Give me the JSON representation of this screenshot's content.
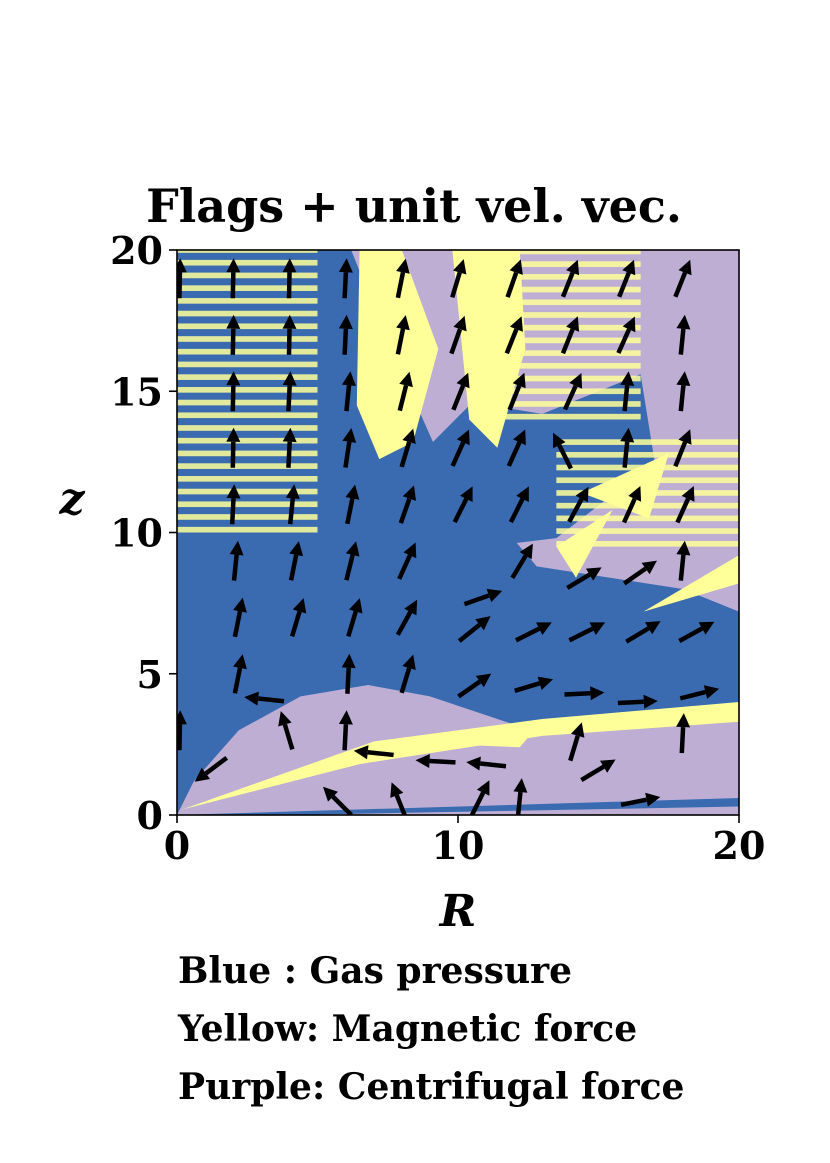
{
  "chart_data": {
    "type": "heatmap",
    "title": "Flags + unit vel. vec.",
    "xlabel": "R",
    "ylabel": "z",
    "xlim": [
      0,
      20
    ],
    "ylim": [
      0,
      20
    ],
    "x_ticks": [
      "0",
      "10",
      "20"
    ],
    "y_ticks": [
      "0",
      "5",
      "10",
      "15",
      "20"
    ],
    "categories": [
      {
        "name": "Gas pressure",
        "color": "#3a6bb0"
      },
      {
        "name": "Magnetic force",
        "color": "#ffff99"
      },
      {
        "name": "Centrifugal force",
        "color": "#beaed4"
      }
    ],
    "flag_regions": [
      {
        "flag": "Centrifugal force",
        "polygon": [
          [
            0,
            0
          ],
          [
            20,
            0
          ],
          [
            20,
            20
          ],
          [
            0,
            20
          ]
        ]
      },
      {
        "flag": "Gas pressure",
        "polygon": [
          [
            0,
            0
          ],
          [
            0,
            20
          ],
          [
            6.2,
            20
          ],
          [
            7.2,
            17.5
          ],
          [
            9.2,
            13
          ],
          [
            12.8,
            8.8
          ],
          [
            18,
            8
          ],
          [
            20,
            7.2
          ],
          [
            20,
            3.6
          ],
          [
            16,
            3.2
          ],
          [
            12,
            3.2
          ],
          [
            9,
            4.2
          ],
          [
            6.8,
            4.6
          ],
          [
            4.4,
            4.2
          ],
          [
            2.2,
            3
          ],
          [
            0.6,
            1.2
          ]
        ]
      },
      {
        "flag": "Gas pressure",
        "polygon": [
          [
            8.5,
            12.6
          ],
          [
            10.5,
            14.6
          ],
          [
            13,
            14.2
          ],
          [
            16.5,
            15.6
          ],
          [
            17,
            12.5
          ],
          [
            13.5,
            9.8
          ],
          [
            11,
            9.5
          ]
        ]
      },
      {
        "flag": "Gas pressure",
        "polygon": [
          [
            0,
            0
          ],
          [
            20,
            0.6
          ],
          [
            20,
            0.3
          ],
          [
            4,
            0
          ]
        ]
      },
      {
        "flag": "Magnetic force",
        "polygon": [
          [
            6.5,
            20
          ],
          [
            8,
            20
          ],
          [
            9.3,
            16.5
          ],
          [
            8.4,
            13.2
          ],
          [
            7.2,
            12.6
          ],
          [
            6.4,
            14.5
          ]
        ]
      },
      {
        "flag": "Magnetic force",
        "polygon": [
          [
            9.8,
            20
          ],
          [
            12.2,
            20
          ],
          [
            12.4,
            16.5
          ],
          [
            11.4,
            13
          ],
          [
            10.4,
            14
          ]
        ]
      },
      {
        "flag": "Magnetic force",
        "polygon": [
          [
            14.4,
            11.4
          ],
          [
            17.5,
            12.8
          ],
          [
            16.8,
            10.5
          ]
        ]
      },
      {
        "flag": "Magnetic force",
        "polygon": [
          [
            0.2,
            0.2
          ],
          [
            7,
            2.6
          ],
          [
            13,
            3.4
          ],
          [
            20,
            4
          ],
          [
            20,
            3.3
          ],
          [
            13,
            2.8
          ],
          [
            6.5,
            1.8
          ]
        ]
      },
      {
        "flag": "Magnetic force",
        "polygon": [
          [
            16.6,
            7.2
          ],
          [
            20,
            9.2
          ],
          [
            20,
            8.2
          ]
        ]
      },
      {
        "flag": "Magnetic force",
        "polygon": [
          [
            9.6,
            2.5
          ],
          [
            12.8,
            3.1
          ],
          [
            12.2,
            2.4
          ]
        ]
      },
      {
        "flag": "Magnetic force",
        "polygon": [
          [
            13.5,
            9.5
          ],
          [
            15.5,
            10.8
          ],
          [
            14.2,
            8.4
          ]
        ]
      }
    ],
    "striped_regions": [
      {
        "flag": "Magnetic force",
        "r_min": 0,
        "r_max": 5,
        "z_min": 10,
        "z_max": 20
      },
      {
        "flag": "Magnetic force",
        "r_min": 10.5,
        "r_max": 16.5,
        "z_min": 14,
        "z_max": 20
      },
      {
        "flag": "Magnetic force",
        "r_min": 13.5,
        "r_max": 20,
        "z_min": 9.5,
        "z_max": 13.5
      }
    ],
    "velocity_vectors": [
      {
        "r": 0.1,
        "z": 19,
        "dr": 0.02,
        "dz": 1
      },
      {
        "r": 0.1,
        "z": 3,
        "dr": 0.02,
        "dz": 1
      },
      {
        "r": 1.2,
        "z": 1.6,
        "dr": -0.8,
        "dz": -0.6
      },
      {
        "r": 2.0,
        "z": 19,
        "dr": 0.02,
        "dz": 1
      },
      {
        "r": 2.0,
        "z": 17,
        "dr": 0.02,
        "dz": 1
      },
      {
        "r": 2.0,
        "z": 15,
        "dr": 0.02,
        "dz": 1
      },
      {
        "r": 2.0,
        "z": 13,
        "dr": 0.02,
        "dz": 1
      },
      {
        "r": 2.0,
        "z": 11,
        "dr": 0.05,
        "dz": 1
      },
      {
        "r": 2.1,
        "z": 9,
        "dr": 0.1,
        "dz": 1
      },
      {
        "r": 2.2,
        "z": 7,
        "dr": 0.2,
        "dz": 1
      },
      {
        "r": 2.2,
        "z": 5,
        "dr": 0.2,
        "dz": 1
      },
      {
        "r": 3.1,
        "z": 4.1,
        "dr": -0.95,
        "dz": 0.1
      },
      {
        "r": 4.0,
        "z": 19,
        "dr": 0.02,
        "dz": 1
      },
      {
        "r": 4.0,
        "z": 17,
        "dr": 0.02,
        "dz": 1
      },
      {
        "r": 4.0,
        "z": 15,
        "dr": 0.05,
        "dz": 1
      },
      {
        "r": 4.0,
        "z": 13,
        "dr": 0.05,
        "dz": 1
      },
      {
        "r": 4.1,
        "z": 11,
        "dr": 0.1,
        "dz": 1
      },
      {
        "r": 4.2,
        "z": 9,
        "dr": 0.2,
        "dz": 1
      },
      {
        "r": 4.3,
        "z": 7,
        "dr": 0.3,
        "dz": 1
      },
      {
        "r": 3.9,
        "z": 3,
        "dr": -0.3,
        "dz": 1
      },
      {
        "r": 6.0,
        "z": 19,
        "dr": 0.05,
        "dz": 1
      },
      {
        "r": 6.0,
        "z": 17,
        "dr": 0.05,
        "dz": 1
      },
      {
        "r": 6.1,
        "z": 15,
        "dr": 0.1,
        "dz": 1
      },
      {
        "r": 6.1,
        "z": 13,
        "dr": 0.15,
        "dz": 1
      },
      {
        "r": 6.2,
        "z": 11,
        "dr": 0.2,
        "dz": 1
      },
      {
        "r": 6.2,
        "z": 9,
        "dr": 0.25,
        "dz": 1
      },
      {
        "r": 6.3,
        "z": 7,
        "dr": 0.3,
        "dz": 1
      },
      {
        "r": 6.1,
        "z": 5,
        "dr": 0.05,
        "dz": 1
      },
      {
        "r": 6.0,
        "z": 3,
        "dr": 0.05,
        "dz": 1
      },
      {
        "r": 5.7,
        "z": 0.5,
        "dr": -0.7,
        "dz": 0.7
      },
      {
        "r": 7.0,
        "z": 2.2,
        "dr": -0.95,
        "dz": 0.1
      },
      {
        "r": 8.0,
        "z": 19,
        "dr": 0.2,
        "dz": 1
      },
      {
        "r": 8.0,
        "z": 17,
        "dr": 0.2,
        "dz": 1
      },
      {
        "r": 8.1,
        "z": 15,
        "dr": 0.25,
        "dz": 1
      },
      {
        "r": 8.2,
        "z": 13,
        "dr": 0.3,
        "dz": 1
      },
      {
        "r": 8.2,
        "z": 11,
        "dr": 0.35,
        "dz": 1
      },
      {
        "r": 8.2,
        "z": 9,
        "dr": 0.45,
        "dz": 1
      },
      {
        "r": 8.2,
        "z": 7,
        "dr": 0.55,
        "dz": 1
      },
      {
        "r": 8.2,
        "z": 5,
        "dr": 0.3,
        "dz": 1
      },
      {
        "r": 7.9,
        "z": 0.5,
        "dr": -0.4,
        "dz": 1
      },
      {
        "r": 9.2,
        "z": 1.9,
        "dr": -0.95,
        "dz": 0.05
      },
      {
        "r": 10.0,
        "z": 19,
        "dr": 0.3,
        "dz": 1
      },
      {
        "r": 10.0,
        "z": 17,
        "dr": 0.35,
        "dz": 1
      },
      {
        "r": 10.1,
        "z": 15,
        "dr": 0.4,
        "dz": 1
      },
      {
        "r": 10.1,
        "z": 13,
        "dr": 0.45,
        "dz": 1
      },
      {
        "r": 10.2,
        "z": 11,
        "dr": 0.5,
        "dz": 1
      },
      {
        "r": 10.9,
        "z": 7.7,
        "dr": 1,
        "dz": 0.35
      },
      {
        "r": 10.6,
        "z": 6.6,
        "dr": 1,
        "dz": 0.8
      },
      {
        "r": 10.6,
        "z": 4.6,
        "dr": 1,
        "dz": 0.7
      },
      {
        "r": 11.0,
        "z": 1.8,
        "dr": -0.95,
        "dz": 0.1
      },
      {
        "r": 10.8,
        "z": 0.6,
        "dr": 0.5,
        "dz": 1
      },
      {
        "r": 12.0,
        "z": 19,
        "dr": 0.35,
        "dz": 1
      },
      {
        "r": 12.0,
        "z": 17,
        "dr": 0.4,
        "dz": 1
      },
      {
        "r": 12.1,
        "z": 15,
        "dr": 0.4,
        "dz": 1
      },
      {
        "r": 12.1,
        "z": 13,
        "dr": 0.45,
        "dz": 1
      },
      {
        "r": 12.2,
        "z": 11,
        "dr": 0.5,
        "dz": 1
      },
      {
        "r": 12.3,
        "z": 9,
        "dr": 0.6,
        "dz": 1
      },
      {
        "r": 12.7,
        "z": 6.5,
        "dr": 1,
        "dz": 0.5
      },
      {
        "r": 12.7,
        "z": 4.6,
        "dr": 1,
        "dz": 0.3
      },
      {
        "r": 12.2,
        "z": 0.6,
        "dr": 0.1,
        "dz": 1
      },
      {
        "r": 14.0,
        "z": 19,
        "dr": 0.4,
        "dz": 1
      },
      {
        "r": 14.0,
        "z": 17,
        "dr": 0.4,
        "dz": 1
      },
      {
        "r": 14.1,
        "z": 15,
        "dr": 0.45,
        "dz": 1
      },
      {
        "r": 13.7,
        "z": 12.9,
        "dr": -0.5,
        "dz": 1
      },
      {
        "r": 14.3,
        "z": 11,
        "dr": 0.55,
        "dz": 1
      },
      {
        "r": 14.5,
        "z": 8.4,
        "dr": 1,
        "dz": 0.6
      },
      {
        "r": 14.6,
        "z": 6.5,
        "dr": 1,
        "dz": 0.5
      },
      {
        "r": 14.5,
        "z": 4.3,
        "dr": 1,
        "dz": 0.05
      },
      {
        "r": 14.2,
        "z": 2.6,
        "dr": 0.3,
        "dz": 1
      },
      {
        "r": 15.0,
        "z": 1.6,
        "dr": 1,
        "dz": 0.6
      },
      {
        "r": 16.0,
        "z": 19,
        "dr": 0.4,
        "dz": 1
      },
      {
        "r": 16.0,
        "z": 17,
        "dr": 0.45,
        "dz": 1
      },
      {
        "r": 16.0,
        "z": 15,
        "dr": 0.1,
        "dz": 1
      },
      {
        "r": 16.0,
        "z": 13,
        "dr": 0.1,
        "dz": 1
      },
      {
        "r": 16.2,
        "z": 11,
        "dr": 0.45,
        "dz": 1
      },
      {
        "r": 16.5,
        "z": 8.6,
        "dr": 1,
        "dz": 0.7
      },
      {
        "r": 16.6,
        "z": 6.5,
        "dr": 1,
        "dz": 0.6
      },
      {
        "r": 16.4,
        "z": 4,
        "dr": 1,
        "dz": 0.05
      },
      {
        "r": 16.5,
        "z": 0.5,
        "dr": 1,
        "dz": 0.2
      },
      {
        "r": 18.0,
        "z": 19,
        "dr": 0.4,
        "dz": 1
      },
      {
        "r": 18.0,
        "z": 17,
        "dr": 0.1,
        "dz": 1
      },
      {
        "r": 18.0,
        "z": 15,
        "dr": 0.1,
        "dz": 1
      },
      {
        "r": 18.0,
        "z": 13,
        "dr": 0.4,
        "dz": 1
      },
      {
        "r": 18.1,
        "z": 11,
        "dr": 0.45,
        "dz": 1
      },
      {
        "r": 18.0,
        "z": 9,
        "dr": 0.1,
        "dz": 1
      },
      {
        "r": 18.5,
        "z": 6.5,
        "dr": 1,
        "dz": 0.55
      },
      {
        "r": 18.6,
        "z": 4.3,
        "dr": 1,
        "dz": 0.25
      },
      {
        "r": 18.0,
        "z": 2.9,
        "dr": 0.05,
        "dz": 1
      }
    ]
  },
  "legend": [
    {
      "text": "Blue : Gas pressure"
    },
    {
      "text": "Yellow: Magnetic force"
    },
    {
      "text": "Purple: Centrifugal force"
    }
  ]
}
